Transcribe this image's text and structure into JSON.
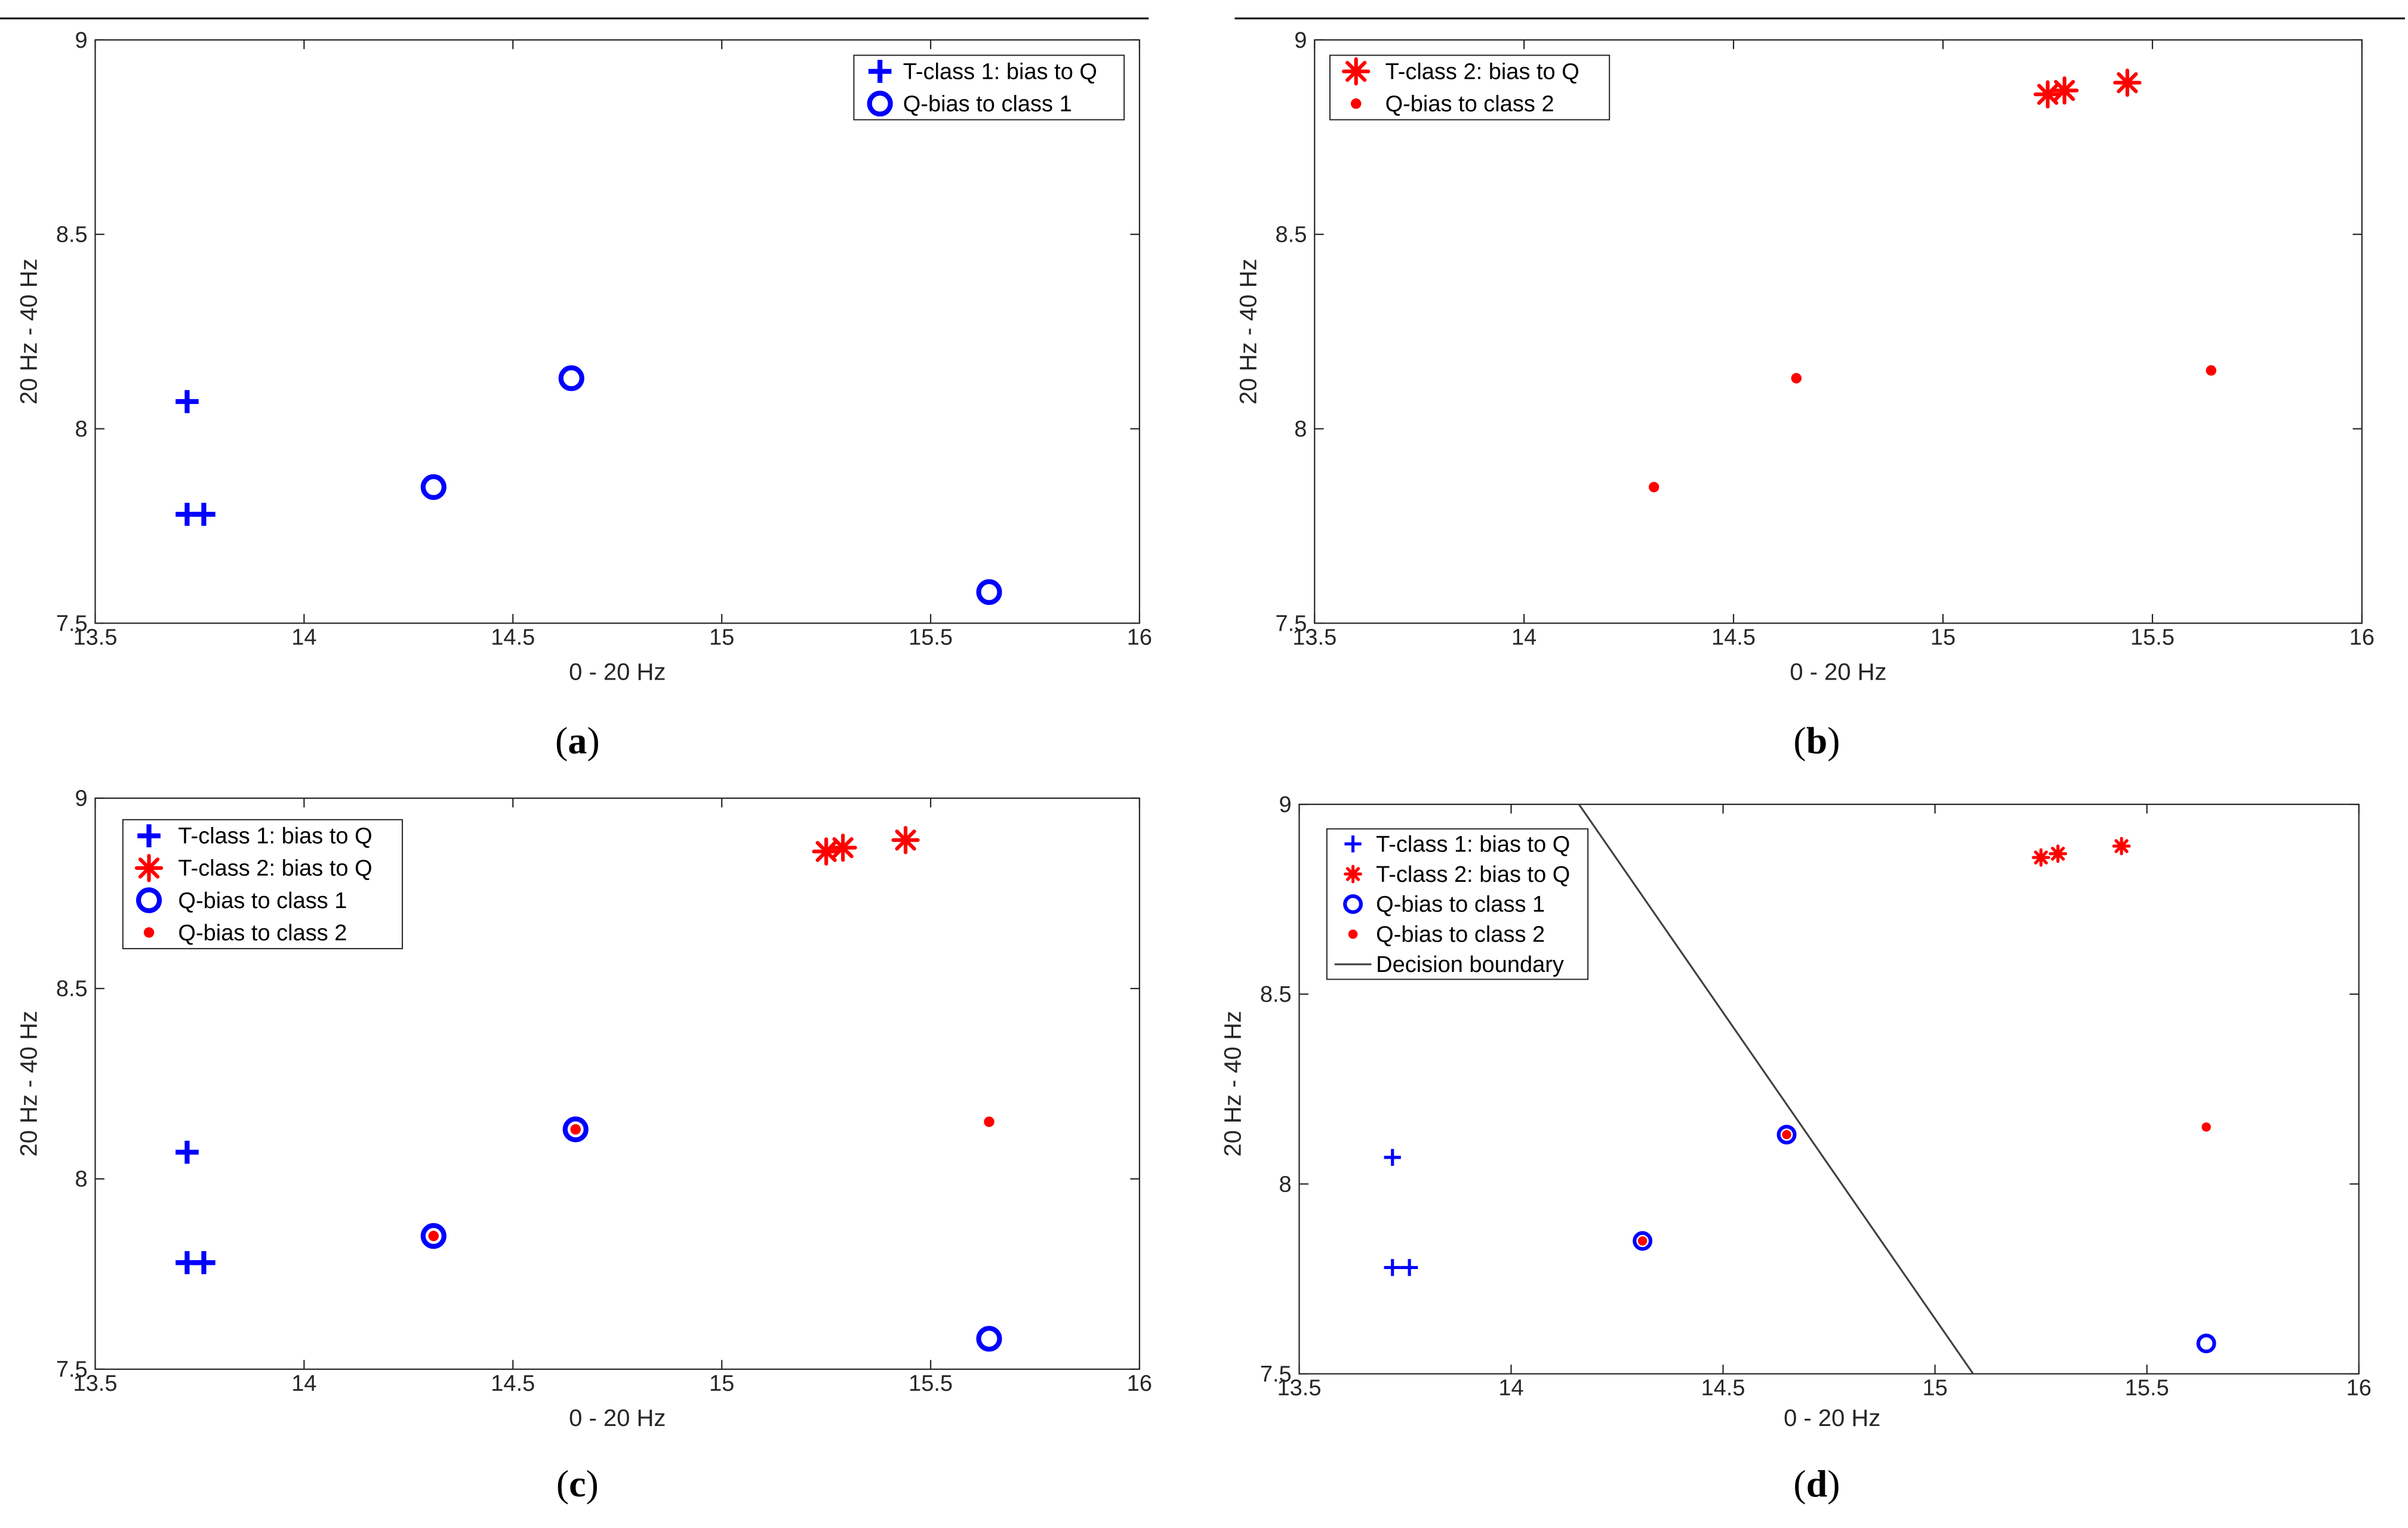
{
  "colors": {
    "blue": "#0000ff",
    "red": "#ff0000",
    "boundary": "#404040",
    "axis": "#262626"
  },
  "chart_data": [
    {
      "type": "scatter",
      "caption": "a",
      "xlabel": "0 - 20 Hz",
      "ylabel": "20 Hz - 40 Hz",
      "xlim": [
        13.5,
        16
      ],
      "ylim": [
        7.5,
        9
      ],
      "xticks": [
        "13.5",
        "14",
        "14.5",
        "15",
        "15.5",
        "16"
      ],
      "yticks": [
        "7.5",
        "8",
        "8.5",
        "9"
      ],
      "legend_position": "top-right",
      "series": [
        {
          "key": "t1",
          "name": "T-class 1: bias to Q",
          "marker": "plus-large",
          "color": "#0000ff",
          "points": [
            [
              13.72,
              8.07
            ],
            [
              13.72,
              7.78
            ],
            [
              13.76,
              7.78
            ]
          ]
        },
        {
          "key": "q1",
          "name": "Q-bias to class 1",
          "marker": "circle-large",
          "color": "#0000ff",
          "points": [
            [
              14.31,
              7.85
            ],
            [
              14.64,
              8.13
            ],
            [
              15.64,
              7.58
            ]
          ]
        }
      ]
    },
    {
      "type": "scatter",
      "caption": "b",
      "xlabel": "0 - 20 Hz",
      "ylabel": "20 Hz - 40 Hz",
      "xlim": [
        13.5,
        16
      ],
      "ylim": [
        7.5,
        9
      ],
      "xticks": [
        "13.5",
        "14",
        "14.5",
        "15",
        "15.5",
        "16"
      ],
      "yticks": [
        "7.5",
        "8",
        "8.5",
        "9"
      ],
      "legend_position": "top-left",
      "series": [
        {
          "key": "t2",
          "name": "T-class 2: bias to Q",
          "marker": "asterisk-large",
          "color": "#ff0000",
          "points": [
            [
              15.25,
              8.86
            ],
            [
              15.29,
              8.87
            ],
            [
              15.44,
              8.89
            ]
          ]
        },
        {
          "key": "q2",
          "name": "Q-bias to class 2",
          "marker": "dot",
          "color": "#ff0000",
          "points": [
            [
              14.31,
              7.85
            ],
            [
              14.65,
              8.13
            ],
            [
              15.64,
              8.15
            ]
          ]
        }
      ]
    },
    {
      "type": "scatter",
      "caption": "c",
      "xlabel": "0 - 20 Hz",
      "ylabel": "20 Hz - 40 Hz",
      "xlim": [
        13.5,
        16
      ],
      "ylim": [
        7.5,
        9
      ],
      "xticks": [
        "13.5",
        "14",
        "14.5",
        "15",
        "15.5",
        "16"
      ],
      "yticks": [
        "7.5",
        "8",
        "8.5",
        "9"
      ],
      "legend_position": "top-left",
      "series": [
        {
          "key": "t1",
          "name": "T-class 1: bias to Q",
          "marker": "plus-large",
          "color": "#0000ff",
          "points": [
            [
              13.72,
              8.07
            ],
            [
              13.72,
              7.78
            ],
            [
              13.76,
              7.78
            ]
          ]
        },
        {
          "key": "t2",
          "name": "T-class 2: bias to Q",
          "marker": "asterisk-large",
          "color": "#ff0000",
          "points": [
            [
              15.25,
              8.86
            ],
            [
              15.29,
              8.87
            ],
            [
              15.44,
              8.89
            ]
          ]
        },
        {
          "key": "q1",
          "name": "Q-bias to class 1",
          "marker": "circle-large",
          "color": "#0000ff",
          "points": [
            [
              14.31,
              7.85
            ],
            [
              14.65,
              8.13
            ],
            [
              15.64,
              7.58
            ]
          ]
        },
        {
          "key": "q2",
          "name": "Q-bias to class 2",
          "marker": "dot",
          "color": "#ff0000",
          "points": [
            [
              14.31,
              7.85
            ],
            [
              14.65,
              8.13
            ],
            [
              15.64,
              8.15
            ]
          ]
        }
      ]
    },
    {
      "type": "scatter",
      "caption": "d",
      "xlabel": "0 - 20 Hz",
      "ylabel": "20 Hz - 40 Hz",
      "xlim": [
        13.5,
        16
      ],
      "ylim": [
        7.5,
        9
      ],
      "xticks": [
        "13.5",
        "14",
        "14.5",
        "15",
        "15.5",
        "16"
      ],
      "yticks": [
        "7.5",
        "8",
        "8.5",
        "9"
      ],
      "legend_position": "top-left",
      "series": [
        {
          "key": "t1",
          "name": "T-class 1: bias to Q",
          "marker": "plus-small",
          "color": "#0000ff",
          "points": [
            [
              13.72,
              8.07
            ],
            [
              13.72,
              7.78
            ],
            [
              13.76,
              7.78
            ]
          ]
        },
        {
          "key": "t2",
          "name": "T-class 2: bias to Q",
          "marker": "asterisk-small",
          "color": "#ff0000",
          "points": [
            [
              15.25,
              8.86
            ],
            [
              15.29,
              8.87
            ],
            [
              15.44,
              8.89
            ]
          ]
        },
        {
          "key": "q1",
          "name": "Q-bias to class 1",
          "marker": "circle-small",
          "color": "#0000ff",
          "points": [
            [
              14.31,
              7.85
            ],
            [
              14.65,
              8.13
            ],
            [
              15.64,
              7.58
            ]
          ]
        },
        {
          "key": "q2",
          "name": "Q-bias to class 2",
          "marker": "dot-small",
          "color": "#ff0000",
          "points": [
            [
              14.31,
              7.85
            ],
            [
              14.65,
              8.13
            ],
            [
              15.64,
              8.15
            ]
          ]
        },
        {
          "key": "boundary",
          "name": "Decision boundary",
          "marker": "line",
          "color": "#404040",
          "points": [
            [
              14.16,
              9.0
            ],
            [
              15.09,
              7.5
            ]
          ]
        }
      ]
    }
  ]
}
